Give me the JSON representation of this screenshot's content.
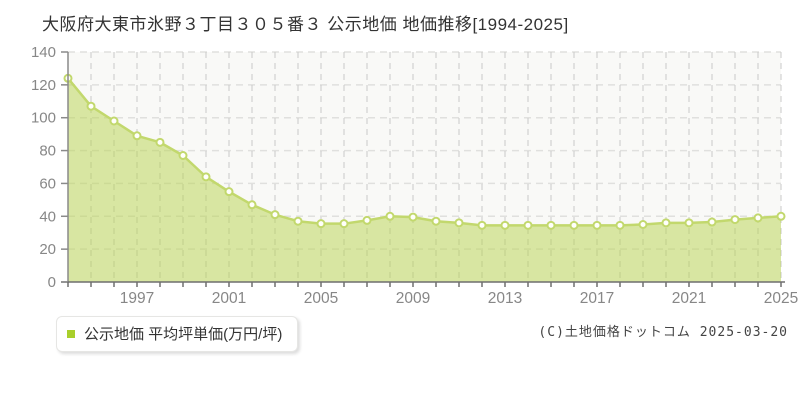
{
  "page": {
    "title": "大阪府大東市氷野３丁目３０５番３ 公示地価 地価推移[1994-2025]",
    "copyright": "(C)土地価格ドットコム 2025-03-20"
  },
  "legend": {
    "label": "公示地価 平均坪単価(万円/坪)",
    "marker_color": "#a9cf2b"
  },
  "chart_data": {
    "type": "area",
    "title": "大阪府大東市氷野３丁目３０５番３ 公示地価 地価推移[1994-2025]",
    "xlabel": "",
    "ylabel": "平均坪単価(万円/坪)",
    "x": [
      1994,
      1995,
      1996,
      1997,
      1998,
      1999,
      2000,
      2001,
      2002,
      2003,
      2004,
      2005,
      2006,
      2007,
      2008,
      2009,
      2010,
      2011,
      2012,
      2013,
      2014,
      2015,
      2016,
      2017,
      2018,
      2019,
      2020,
      2021,
      2022,
      2023,
      2024,
      2025
    ],
    "values": [
      124,
      107,
      98,
      89,
      85,
      77,
      64,
      55,
      47,
      41,
      37,
      35.5,
      35.5,
      37.5,
      40,
      39.5,
      37,
      36,
      34.5,
      34.5,
      34.5,
      34.5,
      34.5,
      34.5,
      34.5,
      35,
      36,
      36,
      36.5,
      38,
      39,
      40
    ],
    "series_name": "公示地価 平均坪単価(万円/坪)",
    "ylim": [
      0,
      140
    ],
    "y_ticks": [
      0,
      20,
      40,
      60,
      80,
      100,
      120,
      140
    ],
    "x_tick_labels": [
      1997,
      2001,
      2005,
      2009,
      2013,
      2017,
      2021,
      2025
    ],
    "grid": true,
    "legend_position": "bottom-left",
    "colors": {
      "line": "#c2d86d",
      "fill": "rgba(186,213,84,0.52)",
      "marker_fill": "#fffffb",
      "plot_background": "#f9f9f7",
      "grid_vertical": "#c9c9c8",
      "grid_horizontal": "#e0e0de",
      "axis": "#8a8a8a",
      "tick_label": "#878787"
    }
  }
}
